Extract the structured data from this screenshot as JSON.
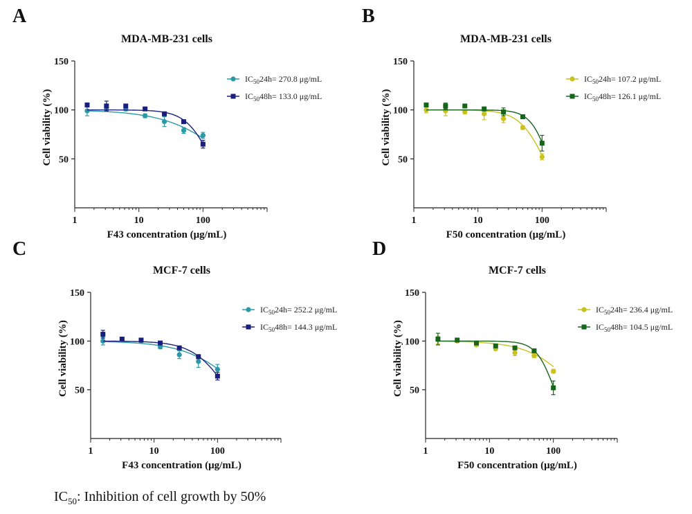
{
  "footnote": {
    "ic_prefix": "IC",
    "ic_sub": "50",
    "text": ": Inhibition of cell growth by 50%"
  },
  "chart_data": [
    {
      "panel": "A",
      "type": "scatter",
      "title": "MDA-MB-231 cells",
      "xlabel": "F43 concentration (μg/mL)",
      "ylabel": "Cell viability (%)",
      "xscale": "log",
      "xlim": [
        1,
        1000
      ],
      "ylim": [
        0,
        150
      ],
      "xticks": [
        "1",
        "10",
        "100"
      ],
      "yticks": [
        "50",
        "100",
        "150"
      ],
      "legend_position": "top-right",
      "series": [
        {
          "name": "IC50 24h= 270.8 μg/mL",
          "name_parts": [
            "IC",
            "50",
            "24h= 270.8 μg/mL"
          ],
          "color": "#2a9aa6",
          "marker": "circle",
          "ic50": 270.8,
          "hill": 0.9,
          "x": [
            1.5625,
            3.125,
            6.25,
            12.5,
            25,
            50,
            100
          ],
          "y": [
            99,
            102,
            101,
            94,
            88,
            79,
            74
          ],
          "err": [
            5,
            3,
            2,
            2,
            5,
            3,
            3
          ]
        },
        {
          "name": "IC50 48h= 133.0 μg/mL",
          "name_parts": [
            "IC",
            "50",
            "48h= 133.0 μg/mL"
          ],
          "color": "#1b1f7c",
          "marker": "square",
          "ic50": 133.0,
          "hill": 2.2,
          "x": [
            1.5625,
            3.125,
            6.25,
            12.5,
            25,
            50,
            100
          ],
          "y": [
            105,
            104,
            104,
            101,
            96,
            88,
            65
          ],
          "err": [
            2,
            5,
            2,
            1,
            2,
            1,
            4
          ]
        }
      ]
    },
    {
      "panel": "B",
      "type": "scatter",
      "title": "MDA-MB-231 cells",
      "xlabel": "F50 concentration (μg/mL)",
      "ylabel": "Cell viability (%)",
      "xscale": "log",
      "xlim": [
        1,
        1000
      ],
      "ylim": [
        0,
        150
      ],
      "xticks": [
        "1",
        "10",
        "100"
      ],
      "yticks": [
        "50",
        "100",
        "150"
      ],
      "legend_position": "top-right",
      "series": [
        {
          "name": "IC50 24h= 107.2 μg/mL",
          "name_parts": [
            "IC",
            "50",
            "24h= 107.2 μg/mL"
          ],
          "color": "#c9c21c",
          "marker": "circle",
          "ic50": 107.2,
          "hill": 2.2,
          "x": [
            1.5625,
            3.125,
            6.25,
            12.5,
            25,
            50,
            100
          ],
          "y": [
            100,
            99,
            98,
            96,
            91,
            82,
            52
          ],
          "err": [
            3,
            5,
            2,
            6,
            4,
            2,
            3
          ]
        },
        {
          "name": "IC50 48h= 126.1 μg/mL",
          "name_parts": [
            "IC",
            "50",
            "48h= 126.1 μg/mL"
          ],
          "color": "#17641c",
          "marker": "square",
          "ic50": 126.1,
          "hill": 3.0,
          "x": [
            1.5625,
            3.125,
            6.25,
            12.5,
            25,
            50,
            100
          ],
          "y": [
            105,
            104,
            104,
            101,
            98,
            93,
            66
          ],
          "err": [
            2,
            3,
            1,
            2,
            4,
            2,
            8
          ]
        }
      ]
    },
    {
      "panel": "C",
      "type": "scatter",
      "title": "MCF-7 cells",
      "xlabel": "F43 concentration (μg/mL)",
      "ylabel": "Cell viability (%)",
      "xscale": "log",
      "xlim": [
        1,
        1000
      ],
      "ylim": [
        0,
        150
      ],
      "xticks": [
        "1",
        "10",
        "100"
      ],
      "yticks": [
        "50",
        "100",
        "150"
      ],
      "legend_position": "top-right",
      "series": [
        {
          "name": "IC50 24h= 252.2 μg/mL",
          "name_parts": [
            "IC",
            "50",
            "24h= 252.2 μg/mL"
          ],
          "color": "#2a9aa6",
          "marker": "circle",
          "ic50": 252.2,
          "hill": 1.0,
          "x": [
            1.5625,
            3.125,
            6.25,
            12.5,
            25,
            50,
            100
          ],
          "y": [
            100,
            102,
            100,
            94,
            86,
            79,
            71
          ],
          "err": [
            4,
            1,
            1,
            2,
            4,
            6,
            5
          ]
        },
        {
          "name": "IC50 48h= 144.3 μg/mL",
          "name_parts": [
            "IC",
            "50",
            "48h= 144.3 μg/mL"
          ],
          "color": "#1b1f7c",
          "marker": "square",
          "ic50": 144.3,
          "hill": 1.6,
          "x": [
            1.5625,
            3.125,
            6.25,
            12.5,
            25,
            50,
            100
          ],
          "y": [
            107,
            102,
            101,
            98,
            93,
            84,
            64
          ],
          "err": [
            4,
            1,
            1,
            1,
            1,
            2,
            4
          ]
        }
      ]
    },
    {
      "panel": "D",
      "type": "scatter",
      "title": "MCF-7 cells",
      "xlabel": "F50 concentration (μg/mL)",
      "ylabel": "Cell viability (%)",
      "xscale": "log",
      "xlim": [
        1,
        1000
      ],
      "ylim": [
        0,
        150
      ],
      "xticks": [
        "1",
        "10",
        "100"
      ],
      "yticks": [
        "50",
        "100",
        "150"
      ],
      "legend_position": "top-right",
      "series": [
        {
          "name": "IC50 24h= 236.4 μg/mL",
          "name_parts": [
            "IC",
            "50",
            "24h= 236.4 μg/mL"
          ],
          "color": "#c9c21c",
          "marker": "circle",
          "ic50": 236.4,
          "hill": 1.2,
          "x": [
            1.5625,
            3.125,
            6.25,
            12.5,
            25,
            50,
            100
          ],
          "y": [
            101,
            100,
            96,
            92,
            88,
            85,
            69
          ],
          "err": [
            4,
            1,
            1,
            1,
            3,
            2,
            2
          ]
        },
        {
          "name": "IC50 48h= 104.5 μg/mL",
          "name_parts": [
            "IC",
            "50",
            "48h= 104.5 μg/mL"
          ],
          "color": "#17641c",
          "marker": "square",
          "ic50": 104.5,
          "hill": 3.0,
          "x": [
            1.5625,
            3.125,
            6.25,
            12.5,
            25,
            50,
            100
          ],
          "y": [
            102,
            101,
            98,
            95,
            93,
            90,
            52
          ],
          "err": [
            6,
            1,
            1,
            1,
            1,
            1,
            7
          ]
        }
      ]
    }
  ]
}
